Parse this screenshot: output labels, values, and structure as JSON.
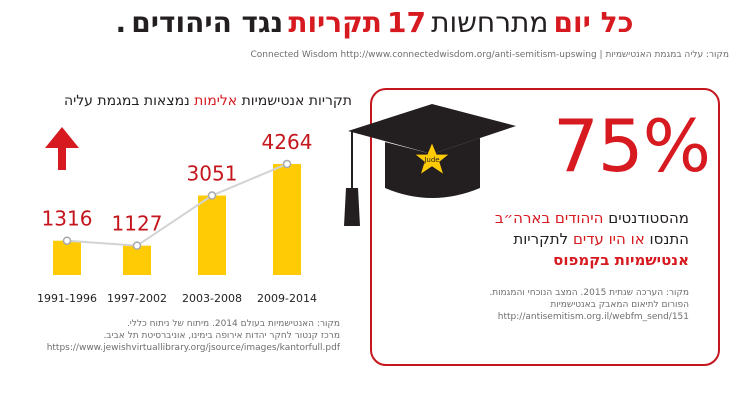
{
  "headline": {
    "part_red": "כל יום",
    "part_light": "מתרחשות",
    "part_number": "17",
    "part_red2": "תקריות",
    "part_dark": "נגד היהודים",
    "dot": "."
  },
  "source_top": "מקור: עליה במגמת האנטישמיות | Connected Wisdom http://www.connectedwisdom.org/anti-semitism-upswing",
  "chart_title": {
    "before": "תקריות אנטישמיות",
    "red": "אלימות",
    "after": "נמצאות במגמת עליה"
  },
  "chart_data": {
    "type": "bar",
    "title": "תקריות אנטישמיות אלימות נמצאות במגמת עליה",
    "categories": [
      "1991-1996",
      "1997-2002",
      "2003-2008",
      "2009-2014"
    ],
    "values": [
      1316,
      1127,
      3051,
      4264
    ],
    "ylim": [
      0,
      4800
    ],
    "grid": false,
    "trend_line": true,
    "bar_color": "#ffcb05",
    "label_color": "#c4161c",
    "line_color": "#d1d3d4",
    "arrow_color": "#d71920"
  },
  "chart_source": [
    "מקור: האנטישמיות בעולם 2014. מיתוח של ניתוח כללי.",
    "מרכז קנטור לחקר יהדות אירופה בימינו, אוניברסיטת תל אביב.",
    "https://www.jewishvirtuallibrary.org/jsource/images/kantorfull.pdf"
  ],
  "card": {
    "percent": "75%",
    "line1_a": "מהסטודנטים",
    "line1_red": "היהודים בארה״ב",
    "line2_a": "התנסו",
    "line2_red": "או היו עדים",
    "line2_b": "לתקריות",
    "line3_red": "אנטישמיות בקמפוס",
    "star_text": "Jude",
    "accent": "#d71920"
  },
  "card_source": [
    "מקור: הערכה שנתית 2015. המצב הנוכחי והמגמות.",
    "הפורום לתיאום המאבק באנטישמיות",
    "http://antisemitism.org.il/webfm_send/151"
  ]
}
